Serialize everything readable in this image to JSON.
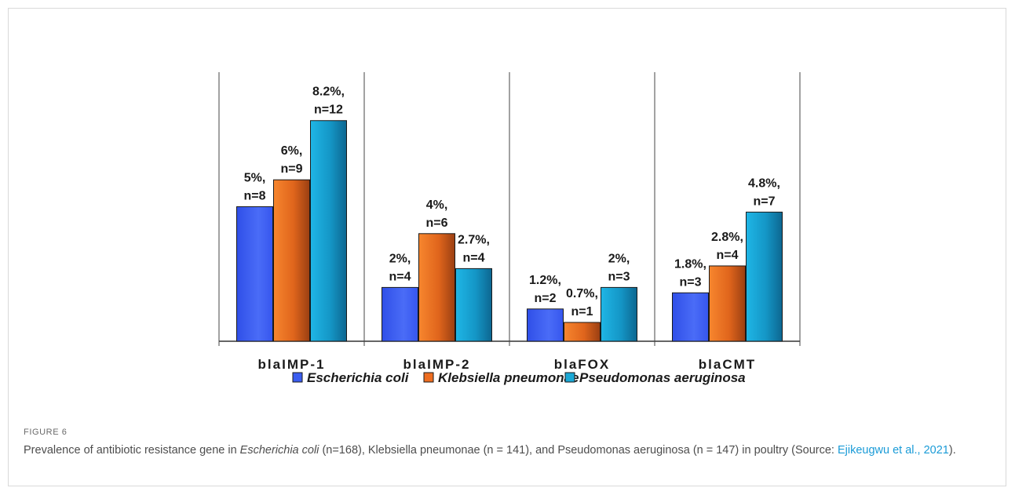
{
  "chart_data": {
    "type": "bar",
    "categories": [
      "blaIMP-1",
      "blaIMP-2",
      "blaFOX",
      "blaCMT"
    ],
    "series": [
      {
        "name": "Escherichia coli",
        "values": [
          5,
          2,
          1.2,
          1.8
        ],
        "labels": [
          [
            "5%,",
            "n=8"
          ],
          [
            "2%,",
            "n=4"
          ],
          [
            "1.2%,",
            "n=2"
          ],
          [
            "1.8%,",
            "n=3"
          ]
        ]
      },
      {
        "name": "Klebsiella pneumonae",
        "values": [
          6,
          4,
          0.7,
          2.8
        ],
        "labels": [
          [
            "6%,",
            "n=9"
          ],
          [
            "4%,",
            "n=6"
          ],
          [
            "0.7%,",
            "n=1"
          ],
          [
            "2.8%,",
            "n=4"
          ]
        ]
      },
      {
        "name": "Pseudomonas aeruginosa",
        "values": [
          8.2,
          2.7,
          2,
          4.8
        ],
        "labels": [
          [
            "8.2%,",
            "n=12"
          ],
          [
            "2.7%,",
            "n=4"
          ],
          [
            "2%,",
            "n=3"
          ],
          [
            "4.8%,",
            "n=7"
          ]
        ]
      }
    ],
    "ylim": [
      0,
      10
    ],
    "grid": false,
    "legend": "bottom",
    "colors": [
      "#3a5df0",
      "#ee6d20",
      "#1aa8d6"
    ]
  },
  "figure": {
    "label": "FIGURE 6",
    "caption_parts": [
      {
        "text": "Prevalence of antibiotic resistance gene in ",
        "style": "normal"
      },
      {
        "text": "Escherichia coli",
        "style": "italic"
      },
      {
        "text": " (n=168), Klebsiella pneumonae (n = 141), and Pseudomonas aeruginosa (n = 147) in poultry (Source: ",
        "style": "normal"
      },
      {
        "text": "Ejikeugwu et al., 2021",
        "style": "link"
      },
      {
        "text": ").",
        "style": "normal"
      }
    ]
  }
}
